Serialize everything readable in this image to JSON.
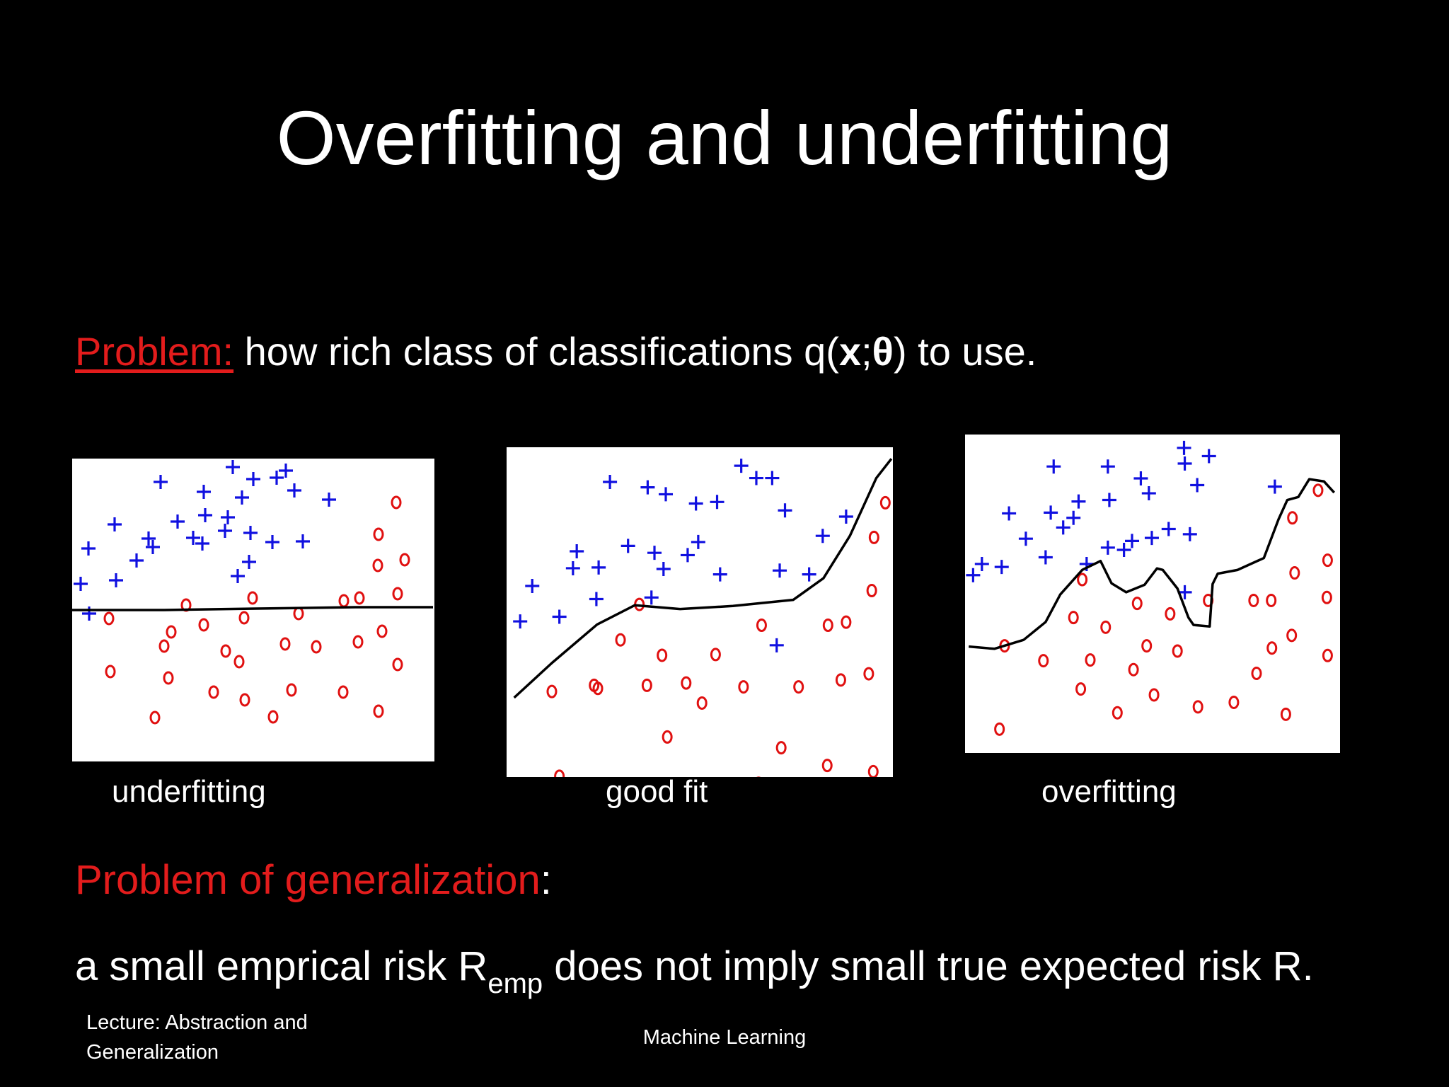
{
  "slide": {
    "title": "Overfitting and underfitting",
    "problem_label": "Problem:",
    "problem_text_a": " how rich class of classifications q(",
    "problem_x": "x",
    "problem_sep": ";",
    "problem_theta": "θ",
    "problem_text_b": ") to use.",
    "gen_title_red": "Problem of generalization",
    "gen_title_colon": ":",
    "gen_body_a": "a small emprical risk R",
    "gen_body_sub": "emp",
    "gen_body_b": " does not imply small true expected risk R.",
    "footer_left": "Lecture: Abstraction and Generalization",
    "footer_center": "Machine Learning"
  },
  "colors": {
    "background": "#000000",
    "text": "#ffffff",
    "accent_red": "#e31c1c",
    "plus": "#1010e0",
    "circle": "#e01010",
    "boundary": "#000000"
  },
  "panels": [
    {
      "caption": "underfitting",
      "plus": [
        [
          125,
          33
        ],
        [
          186,
          47
        ],
        [
          314,
          45
        ],
        [
          227,
          12
        ],
        [
          256,
          29
        ],
        [
          289,
          27
        ],
        [
          302,
          17
        ],
        [
          240,
          55
        ],
        [
          220,
          83
        ],
        [
          363,
          58
        ],
        [
          188,
          80
        ],
        [
          252,
          105
        ],
        [
          149,
          89
        ],
        [
          108,
          113
        ],
        [
          60,
          93
        ],
        [
          171,
          112
        ],
        [
          114,
          125
        ],
        [
          326,
          117
        ],
        [
          283,
          118
        ],
        [
          216,
          102
        ],
        [
          23,
          127
        ],
        [
          184,
          120
        ],
        [
          91,
          144
        ],
        [
          250,
          146
        ],
        [
          62,
          172
        ],
        [
          12,
          177
        ],
        [
          234,
          166
        ],
        [
          24,
          219
        ]
      ],
      "circle": [
        [
          458,
          62
        ],
        [
          433,
          107
        ],
        [
          470,
          143
        ],
        [
          432,
          151
        ],
        [
          460,
          191
        ],
        [
          406,
          197
        ],
        [
          384,
          201
        ],
        [
          320,
          219
        ],
        [
          255,
          197
        ],
        [
          161,
          207
        ],
        [
          186,
          235
        ],
        [
          140,
          245
        ],
        [
          243,
          225
        ],
        [
          438,
          244
        ],
        [
          404,
          259
        ],
        [
          460,
          291
        ],
        [
          217,
          272
        ],
        [
          301,
          262
        ],
        [
          345,
          266
        ],
        [
          236,
          287
        ],
        [
          52,
          226
        ],
        [
          54,
          301
        ],
        [
          130,
          265
        ],
        [
          136,
          310
        ],
        [
          200,
          330
        ],
        [
          244,
          341
        ],
        [
          310,
          327
        ],
        [
          383,
          330
        ],
        [
          433,
          357
        ],
        [
          117,
          366
        ],
        [
          284,
          365
        ]
      ],
      "boundary": [
        [
          0,
          214
        ],
        [
          130,
          214
        ],
        [
          260,
          212
        ],
        [
          400,
          210
        ],
        [
          510,
          210
        ]
      ]
    },
    {
      "caption": "good fit",
      "plus": [
        [
          311,
          24
        ],
        [
          331,
          40
        ],
        [
          352,
          40
        ],
        [
          137,
          45
        ],
        [
          187,
          52
        ],
        [
          279,
          71
        ],
        [
          369,
          82
        ],
        [
          251,
          73
        ],
        [
          211,
          61
        ],
        [
          450,
          90
        ],
        [
          419,
          115
        ],
        [
          254,
          123
        ],
        [
          240,
          140
        ],
        [
          93,
          135
        ],
        [
          161,
          128
        ],
        [
          88,
          157
        ],
        [
          196,
          137
        ],
        [
          122,
          156
        ],
        [
          208,
          158
        ],
        [
          401,
          165
        ],
        [
          283,
          165
        ],
        [
          362,
          160
        ],
        [
          34,
          180
        ],
        [
          119,
          197
        ],
        [
          192,
          195
        ],
        [
          18,
          226
        ],
        [
          70,
          220
        ],
        [
          358,
          257
        ]
      ],
      "circle": [
        [
          502,
          72
        ],
        [
          487,
          117
        ],
        [
          526,
          170
        ],
        [
          484,
          186
        ],
        [
          534,
          228
        ],
        [
          450,
          227
        ],
        [
          426,
          231
        ],
        [
          338,
          231
        ],
        [
          176,
          204
        ],
        [
          151,
          250
        ],
        [
          206,
          270
        ],
        [
          277,
          269
        ],
        [
          528,
          285
        ],
        [
          480,
          294
        ],
        [
          443,
          302
        ],
        [
          387,
          311
        ],
        [
          314,
          311
        ],
        [
          238,
          306
        ],
        [
          186,
          309
        ],
        [
          116,
          309
        ],
        [
          60,
          317
        ],
        [
          121,
          313
        ],
        [
          259,
          332
        ],
        [
          533,
          333
        ],
        [
          213,
          376
        ],
        [
          364,
          390
        ],
        [
          425,
          413
        ],
        [
          486,
          421
        ],
        [
          70,
          427
        ],
        [
          334,
          436
        ]
      ],
      "boundary": [
        [
          10,
          325
        ],
        [
          60,
          280
        ],
        [
          120,
          230
        ],
        [
          170,
          205
        ],
        [
          230,
          210
        ],
        [
          300,
          206
        ],
        [
          380,
          198
        ],
        [
          420,
          170
        ],
        [
          455,
          115
        ],
        [
          490,
          40
        ],
        [
          510,
          15
        ]
      ]
    },
    {
      "caption": "overfitting",
      "plus": [
        [
          299,
          18
        ],
        [
          333,
          29
        ],
        [
          300,
          39
        ],
        [
          121,
          43
        ],
        [
          195,
          43
        ],
        [
          317,
          68
        ],
        [
          251,
          79
        ],
        [
          197,
          88
        ],
        [
          240,
          59
        ],
        [
          423,
          70
        ],
        [
          155,
          90
        ],
        [
          60,
          106
        ],
        [
          148,
          112
        ],
        [
          117,
          105
        ],
        [
          134,
          125
        ],
        [
          83,
          140
        ],
        [
          278,
          127
        ],
        [
          228,
          143
        ],
        [
          307,
          134
        ],
        [
          255,
          139
        ],
        [
          166,
          174
        ],
        [
          195,
          152
        ],
        [
          217,
          155
        ],
        [
          23,
          174
        ],
        [
          110,
          165
        ],
        [
          50,
          178
        ],
        [
          300,
          212
        ],
        [
          11,
          189
        ]
      ],
      "circle": [
        [
          482,
          75
        ],
        [
          447,
          112
        ],
        [
          495,
          169
        ],
        [
          450,
          186
        ],
        [
          494,
          219
        ],
        [
          418,
          223
        ],
        [
          394,
          223
        ],
        [
          332,
          223
        ],
        [
          235,
          227
        ],
        [
          160,
          195
        ],
        [
          148,
          246
        ],
        [
          192,
          259
        ],
        [
          280,
          241
        ],
        [
          446,
          270
        ],
        [
          419,
          287
        ],
        [
          248,
          284
        ],
        [
          495,
          297
        ],
        [
          54,
          284
        ],
        [
          230,
          316
        ],
        [
          171,
          303
        ],
        [
          107,
          304
        ],
        [
          290,
          291
        ],
        [
          158,
          342
        ],
        [
          258,
          350
        ],
        [
          398,
          321
        ],
        [
          367,
          360
        ],
        [
          438,
          376
        ],
        [
          208,
          374
        ],
        [
          318,
          366
        ],
        [
          47,
          396
        ]
      ],
      "boundary": [
        [
          5,
          285
        ],
        [
          40,
          288
        ],
        [
          80,
          276
        ],
        [
          110,
          252
        ],
        [
          130,
          215
        ],
        [
          160,
          182
        ],
        [
          185,
          170
        ],
        [
          200,
          200
        ],
        [
          220,
          212
        ],
        [
          245,
          202
        ],
        [
          262,
          180
        ],
        [
          270,
          182
        ],
        [
          290,
          207
        ],
        [
          305,
          246
        ],
        [
          312,
          256
        ],
        [
          334,
          258
        ],
        [
          338,
          201
        ],
        [
          345,
          187
        ],
        [
          372,
          182
        ],
        [
          408,
          166
        ],
        [
          428,
          114
        ],
        [
          440,
          88
        ],
        [
          455,
          84
        ],
        [
          470,
          60
        ],
        [
          490,
          63
        ],
        [
          504,
          78
        ]
      ]
    }
  ]
}
